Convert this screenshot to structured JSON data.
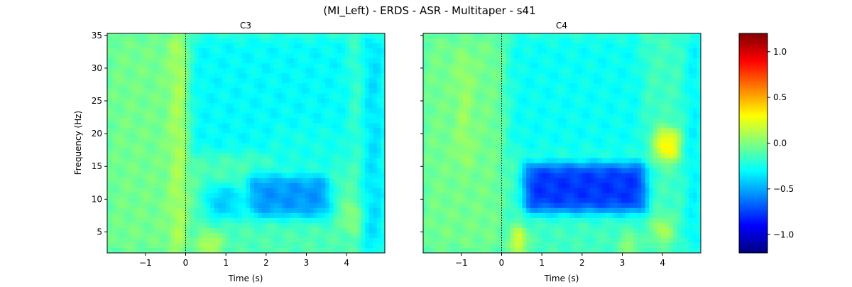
{
  "figure": {
    "title": "(MI_Left) - ERDS - ASR - Multitaper - s41"
  },
  "chart_data": [
    {
      "type": "heatmap",
      "title": "C3",
      "xlabel": "Time (s)",
      "ylabel": "Frequency (Hz)",
      "xlim": [
        -1.95,
        4.95
      ],
      "ylim": [
        1.8,
        35.3
      ],
      "xticks": [
        -1,
        0,
        1,
        2,
        3,
        4
      ],
      "yticks": [
        5,
        10,
        15,
        20,
        25,
        30,
        35
      ],
      "event_line_x": 0,
      "colormap": "jet",
      "color_range": [
        -1.2,
        1.2
      ],
      "background_value": -0.12,
      "features": [
        {
          "x": [
            1.55,
            3.6
          ],
          "y": [
            7.2,
            13.8
          ],
          "value": -0.55
        },
        {
          "x": [
            0.5,
            1.4
          ],
          "y": [
            7.0,
            12.0
          ],
          "value": -0.42
        },
        {
          "x": [
            0.0,
            4.1
          ],
          "y": [
            17.0,
            35.0
          ],
          "value": -0.3
        },
        {
          "x": [
            2.1,
            4.0
          ],
          "y": [
            14.5,
            21.0
          ],
          "value": -0.25
        },
        {
          "x": [
            -1.95,
            0.0
          ],
          "y": [
            1.8,
            35.3
          ],
          "value": -0.03
        },
        {
          "x": [
            -0.35,
            0.0
          ],
          "y": [
            1.8,
            35.3
          ],
          "value": 0.12
        },
        {
          "x": [
            0.35,
            0.85
          ],
          "y": [
            1.8,
            4.5
          ],
          "value": 0.22
        },
        {
          "x": [
            4.0,
            4.4
          ],
          "y": [
            5.0,
            9.5
          ],
          "value": 0.1
        },
        {
          "x": [
            4.4,
            4.95
          ],
          "y": [
            1.8,
            35.3
          ],
          "value": -0.38
        }
      ]
    },
    {
      "type": "heatmap",
      "title": "C4",
      "xlabel": "Time (s)",
      "ylabel": "",
      "xlim": [
        -1.95,
        4.95
      ],
      "ylim": [
        1.8,
        35.3
      ],
      "xticks": [
        -1,
        0,
        1,
        2,
        3,
        4
      ],
      "yticks": [
        5,
        10,
        15,
        20,
        25,
        30,
        35
      ],
      "event_line_x": 0,
      "colormap": "jet",
      "color_range": [
        -1.2,
        1.2
      ],
      "background_value": -0.15,
      "features": [
        {
          "x": [
            0.55,
            3.6
          ],
          "y": [
            8.0,
            15.5
          ],
          "value": -0.78
        },
        {
          "x": [
            1.6,
            3.1
          ],
          "y": [
            21.0,
            29.0
          ],
          "value": -0.4
        },
        {
          "x": [
            0.2,
            3.5
          ],
          "y": [
            17.0,
            35.0
          ],
          "value": -0.28
        },
        {
          "x": [
            -1.95,
            0.0
          ],
          "y": [
            1.8,
            35.3
          ],
          "value": -0.03
        },
        {
          "x": [
            -1.05,
            -0.8
          ],
          "y": [
            15.0,
            32.0
          ],
          "value": 0.1
        },
        {
          "x": [
            3.85,
            4.4
          ],
          "y": [
            16.0,
            20.5
          ],
          "value": 0.38
        },
        {
          "x": [
            0.3,
            0.55
          ],
          "y": [
            1.8,
            5.5
          ],
          "value": 0.45
        },
        {
          "x": [
            3.05,
            3.3
          ],
          "y": [
            1.8,
            4.2
          ],
          "value": 0.25
        },
        {
          "x": [
            3.8,
            4.2
          ],
          "y": [
            3.5,
            7.0
          ],
          "value": 0.18
        },
        {
          "x": [
            4.6,
            4.95
          ],
          "y": [
            1.8,
            35.3
          ],
          "value": -0.35
        }
      ]
    }
  ],
  "colorbar": {
    "range": [
      -1.2,
      1.2
    ],
    "ticks": [
      1.0,
      0.5,
      0.0,
      -0.5,
      -1.0
    ],
    "tick_labels": [
      "1.0",
      "0.5",
      "0.0",
      "−0.5",
      "−1.0"
    ]
  },
  "colors": {
    "event_line": "#000000",
    "axis": "#000000"
  }
}
